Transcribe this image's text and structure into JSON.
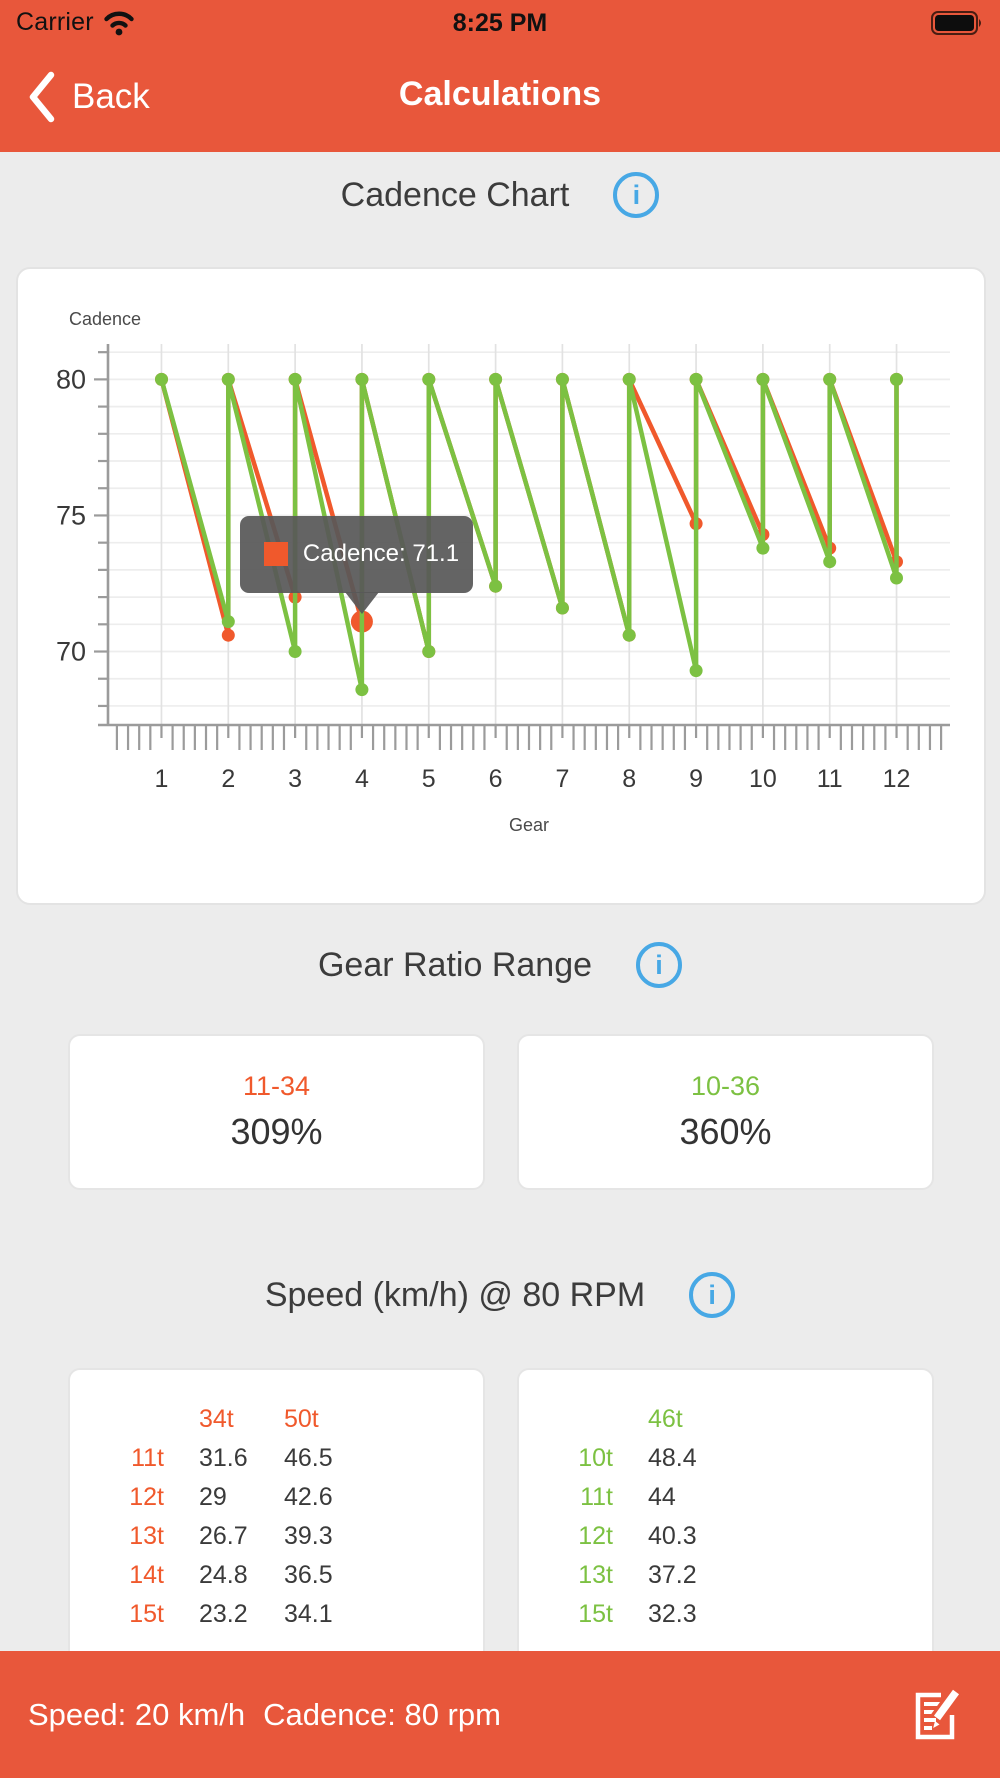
{
  "colors": {
    "chrome_orange": "#e8573b",
    "chart_red": "#f0592c",
    "chart_green": "#7cc142",
    "info_blue": "#47a8e5",
    "background": "#ececec",
    "card_white": "#ffffff",
    "text_dark": "#3c3c3c",
    "tooltip_bg": "rgba(88,88,88,0.93)"
  },
  "status_bar": {
    "carrier": "Carrier",
    "time": "8:25 PM"
  },
  "nav_bar": {
    "back_label": "Back",
    "title": "Calculations"
  },
  "sections": {
    "cadence_chart": {
      "title": "Cadence Chart"
    },
    "gear_ratio": {
      "title": "Gear Ratio Range",
      "cards": [
        {
          "cassette": "11-34",
          "range_pct": "309%",
          "color": "#f0592c"
        },
        {
          "cassette": "10-36",
          "range_pct": "360%",
          "color": "#7cc142"
        }
      ]
    },
    "speed": {
      "title": "Speed (km/h) @ 80 RPM",
      "tables": [
        {
          "accent": "#f0592c",
          "col_headers": [
            "34t",
            "50t"
          ],
          "rows": [
            {
              "cog": "11t",
              "values": [
                "31.6",
                "46.5"
              ]
            },
            {
              "cog": "12t",
              "values": [
                "29",
                "42.6"
              ]
            },
            {
              "cog": "13t",
              "values": [
                "26.7",
                "39.3"
              ]
            },
            {
              "cog": "14t",
              "values": [
                "24.8",
                "36.5"
              ]
            },
            {
              "cog": "15t",
              "values": [
                "23.2",
                "34.1"
              ]
            }
          ]
        },
        {
          "accent": "#7cc142",
          "col_headers": [
            "46t"
          ],
          "rows": [
            {
              "cog": "10t",
              "values": [
                "48.4"
              ]
            },
            {
              "cog": "11t",
              "values": [
                "44"
              ]
            },
            {
              "cog": "12t",
              "values": [
                "40.3"
              ]
            },
            {
              "cog": "13t",
              "values": [
                "37.2"
              ]
            },
            {
              "cog": "15t",
              "values": [
                "32.3"
              ]
            }
          ]
        }
      ]
    }
  },
  "chart_data": {
    "type": "line",
    "title": "Cadence Chart",
    "xlabel": "Gear",
    "ylabel": "Cadence",
    "xlim": [
      0.2,
      12.8
    ],
    "ylim": [
      67.3,
      81.3
    ],
    "x_major_ticks": [
      1,
      2,
      3,
      4,
      5,
      6,
      7,
      8,
      9,
      10,
      11,
      12
    ],
    "x_minor_divisions": 6,
    "y_grid_step": 1,
    "y_labeled_ticks": [
      70,
      75,
      80
    ],
    "grid": true,
    "legend": "none",
    "series": [
      {
        "name": "11-34",
        "color": "#f0592c",
        "points": [
          [
            1,
            80
          ],
          [
            2,
            70.6
          ],
          [
            2,
            80
          ],
          [
            3,
            72
          ],
          [
            3,
            80
          ],
          [
            4,
            71.1
          ],
          [
            4,
            80
          ],
          [
            5,
            70
          ],
          [
            5,
            80
          ],
          [
            6,
            72.4
          ],
          [
            6,
            80
          ],
          [
            7,
            71.6
          ],
          [
            7,
            80
          ],
          [
            8,
            70.6
          ],
          [
            8,
            80
          ],
          [
            9,
            74.7
          ],
          [
            9,
            80
          ],
          [
            10,
            74.3
          ],
          [
            10,
            80
          ],
          [
            11,
            73.8
          ],
          [
            11,
            80
          ],
          [
            12,
            73.3
          ],
          [
            12,
            80
          ]
        ]
      },
      {
        "name": "10-36",
        "color": "#7cc142",
        "points": [
          [
            1,
            80
          ],
          [
            2,
            71.1
          ],
          [
            2,
            80
          ],
          [
            3,
            70
          ],
          [
            3,
            80
          ],
          [
            4,
            68.6
          ],
          [
            4,
            80
          ],
          [
            5,
            70
          ],
          [
            5,
            80
          ],
          [
            6,
            72.4
          ],
          [
            6,
            80
          ],
          [
            7,
            71.6
          ],
          [
            7,
            80
          ],
          [
            8,
            70.6
          ],
          [
            8,
            80
          ],
          [
            9,
            69.3
          ],
          [
            9,
            80
          ],
          [
            10,
            73.8
          ],
          [
            10,
            80
          ],
          [
            11,
            73.3
          ],
          [
            11,
            80
          ],
          [
            12,
            72.7
          ],
          [
            12,
            80
          ]
        ]
      }
    ],
    "highlight": {
      "series": "11-34",
      "gear": 4,
      "cadence": 71.1
    },
    "tooltip": {
      "text": "Cadence: 71.1",
      "swatch_color": "#f0592c"
    }
  },
  "bottom_bar": {
    "speed_label": "Speed: 20 km/h",
    "cadence_label": "Cadence: 80 rpm"
  }
}
